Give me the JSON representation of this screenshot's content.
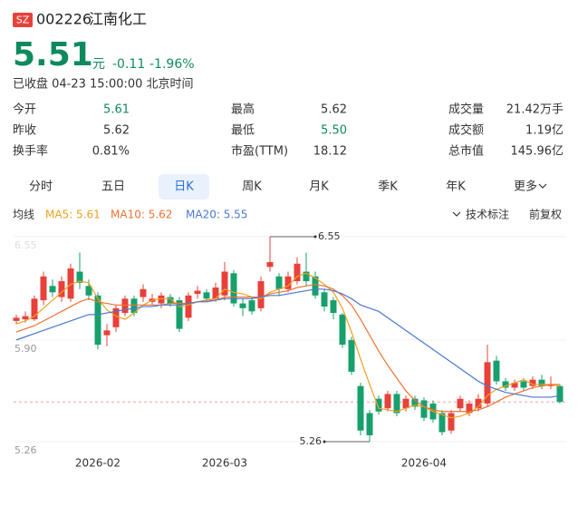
{
  "quote": {
    "market": "SZ",
    "code": "002226",
    "name": "江南化工",
    "price": 5.51,
    "unit": "元",
    "change": -0.11,
    "change_pct": "-1.96%",
    "status": "已收盘 04-23 15:00:00 北京时间"
  },
  "stats": [
    [
      [
        "今开",
        "5.61"
      ],
      [
        "最高",
        "5.62"
      ],
      [
        "成交量",
        "21.42万手"
      ]
    ],
    [
      [
        "昨收",
        "5.62"
      ],
      [
        "最低",
        "5.50"
      ],
      [
        "成交额",
        "1.19亿"
      ]
    ],
    [
      [
        "换手率",
        "0.81%"
      ],
      [
        "市盈(TTM)",
        "18.12"
      ],
      [
        "总市值",
        "145.96亿"
      ]
    ]
  ],
  "tabs": [
    {
      "label": "分时"
    },
    {
      "label": "五日"
    },
    {
      "label": "日K",
      "selected": true
    },
    {
      "label": "周K"
    },
    {
      "label": "月K"
    },
    {
      "label": "季K"
    },
    {
      "label": "年K"
    },
    {
      "label": "更多"
    }
  ],
  "toolbar": [
    "技术标注",
    "前复权"
  ],
  "chart_data": {
    "type": "candlestick",
    "legend_title": "均线",
    "categories": [
      null,
      null,
      null,
      null,
      null,
      null,
      null,
      null,
      null,
      "2026-02",
      null,
      null,
      null,
      null,
      null,
      null,
      null,
      null,
      null,
      null,
      null,
      null,
      null,
      "2026-03",
      null,
      null,
      null,
      null,
      null,
      null,
      null,
      null,
      null,
      null,
      null,
      null,
      null,
      null,
      null,
      null,
      null,
      null,
      null,
      null,
      null,
      "2026-04",
      null,
      null,
      null,
      null,
      null,
      null,
      null,
      null,
      null,
      null,
      null,
      null,
      null,
      null,
      null
    ],
    "open": [
      6.02,
      6.03,
      6.03,
      6.15,
      6.24,
      6.17,
      6.16,
      6.33,
      6.24,
      6.18,
      5.93,
      5.98,
      6.07,
      6.16,
      6.17,
      6.14,
      6.13,
      6.17,
      6.15,
      6.04,
      6.19,
      6.2,
      6.16,
      6.18,
      6.32,
      6.13,
      6.15,
      6.1,
      6.36,
      6.3,
      6.22,
      6.27,
      6.33,
      6.3,
      6.2,
      6.15,
      6.06,
      5.9,
      5.61,
      5.44,
      5.53,
      5.47,
      5.56,
      5.47,
      5.53,
      5.52,
      5.5,
      5.44,
      5.33,
      5.47,
      5.44,
      5.47,
      5.5,
      5.77,
      5.64,
      5.6,
      5.64,
      5.61,
      5.65,
      5.61,
      5.61
    ],
    "high": [
      6.06,
      6.08,
      6.18,
      6.33,
      6.28,
      6.3,
      6.38,
      6.45,
      6.28,
      6.2,
      6.0,
      6.12,
      6.18,
      6.18,
      6.25,
      6.19,
      6.2,
      6.19,
      6.17,
      6.2,
      6.24,
      6.22,
      6.26,
      6.39,
      6.34,
      6.16,
      6.17,
      6.3,
      6.55,
      6.32,
      6.33,
      6.42,
      6.45,
      6.33,
      6.22,
      6.17,
      6.07,
      5.92,
      5.63,
      5.46,
      5.55,
      5.58,
      5.58,
      5.55,
      5.55,
      5.54,
      5.52,
      5.46,
      5.46,
      5.55,
      5.52,
      5.56,
      5.87,
      5.8,
      5.66,
      5.65,
      5.66,
      5.67,
      5.68,
      5.67,
      5.62
    ],
    "low": [
      6.0,
      6.01,
      6.02,
      6.12,
      6.17,
      6.14,
      6.14,
      6.22,
      6.15,
      5.84,
      5.86,
      5.95,
      6.05,
      6.05,
      6.14,
      6.12,
      6.1,
      6.11,
      5.95,
      6.02,
      6.16,
      6.14,
      6.14,
      6.15,
      6.11,
      6.05,
      6.06,
      6.08,
      6.33,
      6.18,
      6.2,
      6.25,
      6.24,
      6.16,
      6.08,
      6.03,
      5.85,
      5.68,
      5.3,
      5.26,
      5.43,
      5.45,
      5.42,
      5.45,
      5.46,
      5.39,
      5.38,
      5.3,
      5.31,
      5.45,
      5.42,
      5.45,
      5.48,
      5.62,
      5.58,
      5.58,
      5.58,
      5.59,
      5.59,
      5.59,
      5.5
    ],
    "close": [
      6.04,
      6.05,
      6.16,
      6.3,
      6.2,
      6.27,
      6.35,
      6.26,
      6.18,
      5.87,
      5.96,
      6.1,
      6.16,
      6.07,
      6.22,
      6.16,
      6.18,
      6.13,
      5.97,
      6.18,
      6.21,
      6.16,
      6.23,
      6.33,
      6.13,
      6.1,
      6.08,
      6.27,
      6.39,
      6.22,
      6.3,
      6.38,
      6.27,
      6.18,
      6.11,
      6.07,
      5.87,
      5.7,
      5.33,
      5.3,
      5.45,
      5.56,
      5.44,
      5.53,
      5.48,
      5.41,
      5.4,
      5.32,
      5.44,
      5.53,
      5.5,
      5.53,
      5.76,
      5.64,
      5.6,
      5.63,
      5.6,
      5.65,
      5.61,
      5.62,
      5.51
    ],
    "colors": {
      "up": "#e8403a",
      "down": "#17a06c"
    },
    "series": [
      {
        "name": "MA5: 5.61",
        "color": "#f0a020",
        "values": [
          6.0,
          6.02,
          6.05,
          6.1,
          6.15,
          6.2,
          6.25,
          6.27,
          6.26,
          6.16,
          6.09,
          6.05,
          6.03,
          6.07,
          6.12,
          6.15,
          6.16,
          6.16,
          6.11,
          6.12,
          6.14,
          6.15,
          6.16,
          6.22,
          6.2,
          6.19,
          6.17,
          6.16,
          6.2,
          6.22,
          6.24,
          6.3,
          6.32,
          6.29,
          6.25,
          6.2,
          6.1,
          5.95,
          5.78,
          5.62,
          5.47,
          5.46,
          5.45,
          5.47,
          5.49,
          5.48,
          5.45,
          5.43,
          5.41,
          5.42,
          5.44,
          5.48,
          5.55,
          5.59,
          5.61,
          5.63,
          5.65,
          5.62,
          5.62,
          5.62,
          5.61
        ]
      },
      {
        "name": "MA10: 5.62",
        "color": "#f07030",
        "values": [
          5.95,
          5.97,
          5.99,
          6.02,
          6.05,
          6.08,
          6.11,
          6.14,
          6.16,
          6.14,
          6.13,
          6.12,
          6.12,
          6.12,
          6.12,
          6.12,
          6.12,
          6.13,
          6.13,
          6.13,
          6.14,
          6.15,
          6.15,
          6.17,
          6.17,
          6.17,
          6.17,
          6.17,
          6.19,
          6.2,
          6.21,
          6.23,
          6.24,
          6.25,
          6.24,
          6.22,
          6.18,
          6.12,
          6.03,
          5.93,
          5.83,
          5.74,
          5.66,
          5.58,
          5.52,
          5.48,
          5.46,
          5.45,
          5.45,
          5.45,
          5.45,
          5.46,
          5.48,
          5.51,
          5.54,
          5.56,
          5.58,
          5.6,
          5.61,
          5.62,
          5.62
        ]
      },
      {
        "name": "MA20: 5.55",
        "color": "#4a78d0",
        "values": [
          5.9,
          5.92,
          5.94,
          5.96,
          5.98,
          6.0,
          6.02,
          6.04,
          6.06,
          6.06,
          6.07,
          6.08,
          6.09,
          6.1,
          6.11,
          6.11,
          6.12,
          6.12,
          6.12,
          6.13,
          6.14,
          6.14,
          6.15,
          6.16,
          6.16,
          6.16,
          6.16,
          6.17,
          6.18,
          6.18,
          6.19,
          6.2,
          6.21,
          6.22,
          6.22,
          6.21,
          6.19,
          6.16,
          6.12,
          6.1,
          6.08,
          6.04,
          6.0,
          5.96,
          5.92,
          5.88,
          5.84,
          5.8,
          5.76,
          5.72,
          5.68,
          5.64,
          5.61,
          5.59,
          5.57,
          5.56,
          5.55,
          5.54,
          5.54,
          5.54,
          5.55
        ]
      }
    ],
    "ylim": [
      5.26,
      6.55
    ],
    "yticks": [
      6.55,
      {
        "value": 5.9,
        "label": "5.90"
      },
      5.26
    ],
    "annotations": [
      6.55,
      5.26
    ]
  }
}
